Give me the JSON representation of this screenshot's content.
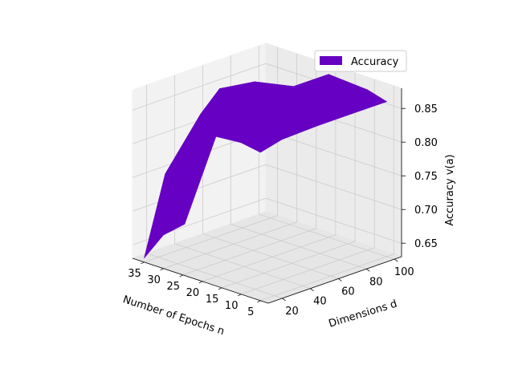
{
  "chart_data": {
    "type": "surface",
    "xlabel": "Number of Epochs n",
    "ylabel": "Dimensions d",
    "zlabel": "Accuracy v(a)",
    "x_ticks": [
      "5",
      "10",
      "15",
      "20",
      "25",
      "30",
      "35"
    ],
    "y_ticks": [
      "20",
      "40",
      "60",
      "80",
      "100"
    ],
    "z_ticks": [
      "0.65",
      "0.70",
      "0.75",
      "0.80",
      "0.85"
    ],
    "xlim": [
      3,
      38
    ],
    "ylim": [
      10,
      105
    ],
    "zlim": [
      0.63,
      0.88
    ],
    "legend": {
      "label": "Accuracy",
      "color": "#6600c2",
      "position": "upper right"
    },
    "grid": true,
    "surface_color": "#6600c2",
    "x": [
      5,
      10,
      20,
      30,
      35
    ],
    "y": [
      10,
      25,
      50,
      75,
      100
    ],
    "z": [
      [
        0.85,
        0.858,
        0.86,
        0.86,
        0.86
      ],
      [
        0.855,
        0.86,
        0.863,
        0.866,
        0.868
      ],
      [
        0.85,
        0.865,
        0.87,
        0.872,
        0.872
      ],
      [
        0.68,
        0.685,
        0.868,
        0.86,
        0.8
      ],
      [
        0.636,
        0.75,
        0.82,
        0.82,
        0.8
      ]
    ]
  }
}
